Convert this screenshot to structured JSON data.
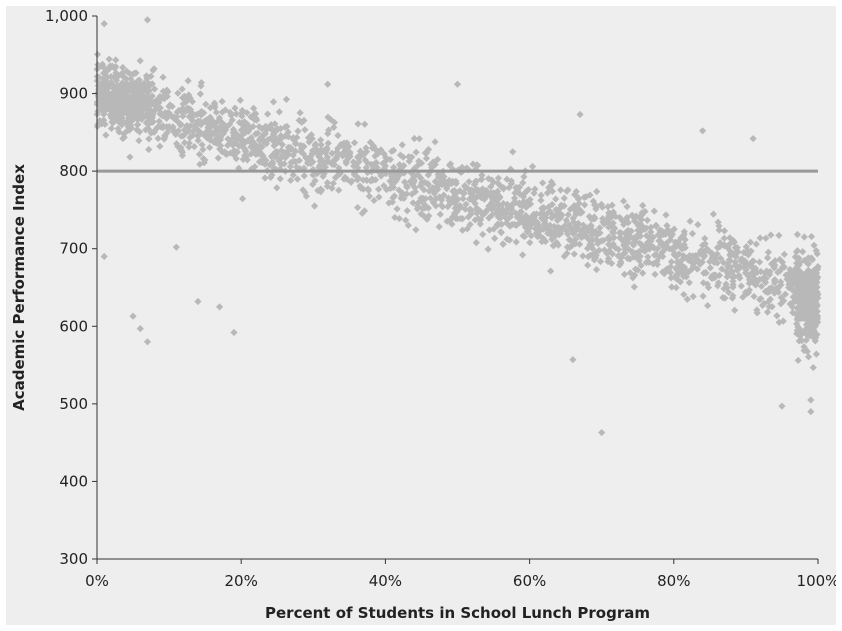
{
  "chart_data": {
    "type": "scatter",
    "title": "",
    "xlabel": "Percent of Students in School Lunch Program",
    "ylabel": "Academic Performance Index",
    "xlim": [
      0,
      100
    ],
    "ylim": [
      300,
      1000
    ],
    "x_ticks": [
      0,
      20,
      40,
      60,
      80,
      100
    ],
    "x_tick_labels": [
      "0%",
      "20%",
      "40%",
      "60%",
      "80%",
      "100%"
    ],
    "y_ticks": [
      300,
      400,
      500,
      600,
      700,
      800,
      900,
      1000
    ],
    "y_tick_labels": [
      "300",
      "400",
      "500",
      "600",
      "700",
      "800",
      "900",
      "1,000"
    ],
    "grid": false,
    "legend": "none",
    "reference_line": {
      "y": 800
    },
    "trend": {
      "slope_per_pct": -2.5,
      "intercept": 895
    },
    "outliers": [
      {
        "x": 1,
        "y": 690
      },
      {
        "x": 5,
        "y": 613
      },
      {
        "x": 6,
        "y": 597
      },
      {
        "x": 7,
        "y": 580
      },
      {
        "x": 14,
        "y": 632
      },
      {
        "x": 17,
        "y": 625
      },
      {
        "x": 19,
        "y": 592
      },
      {
        "x": 11,
        "y": 702
      },
      {
        "x": 7,
        "y": 995
      },
      {
        "x": 32,
        "y": 912
      },
      {
        "x": 50,
        "y": 912
      },
      {
        "x": 70,
        "y": 463
      },
      {
        "x": 67,
        "y": 873
      },
      {
        "x": 84,
        "y": 852
      },
      {
        "x": 91,
        "y": 842
      },
      {
        "x": 1,
        "y": 990
      },
      {
        "x": 99,
        "y": 490
      },
      {
        "x": 99,
        "y": 505
      },
      {
        "x": 66,
        "y": 557
      },
      {
        "x": 95,
        "y": 497
      }
    ],
    "colors": {
      "points": "#b8b8b8",
      "reference_line": "#999999",
      "axis": "#333333",
      "background": "#eeeeee"
    }
  }
}
